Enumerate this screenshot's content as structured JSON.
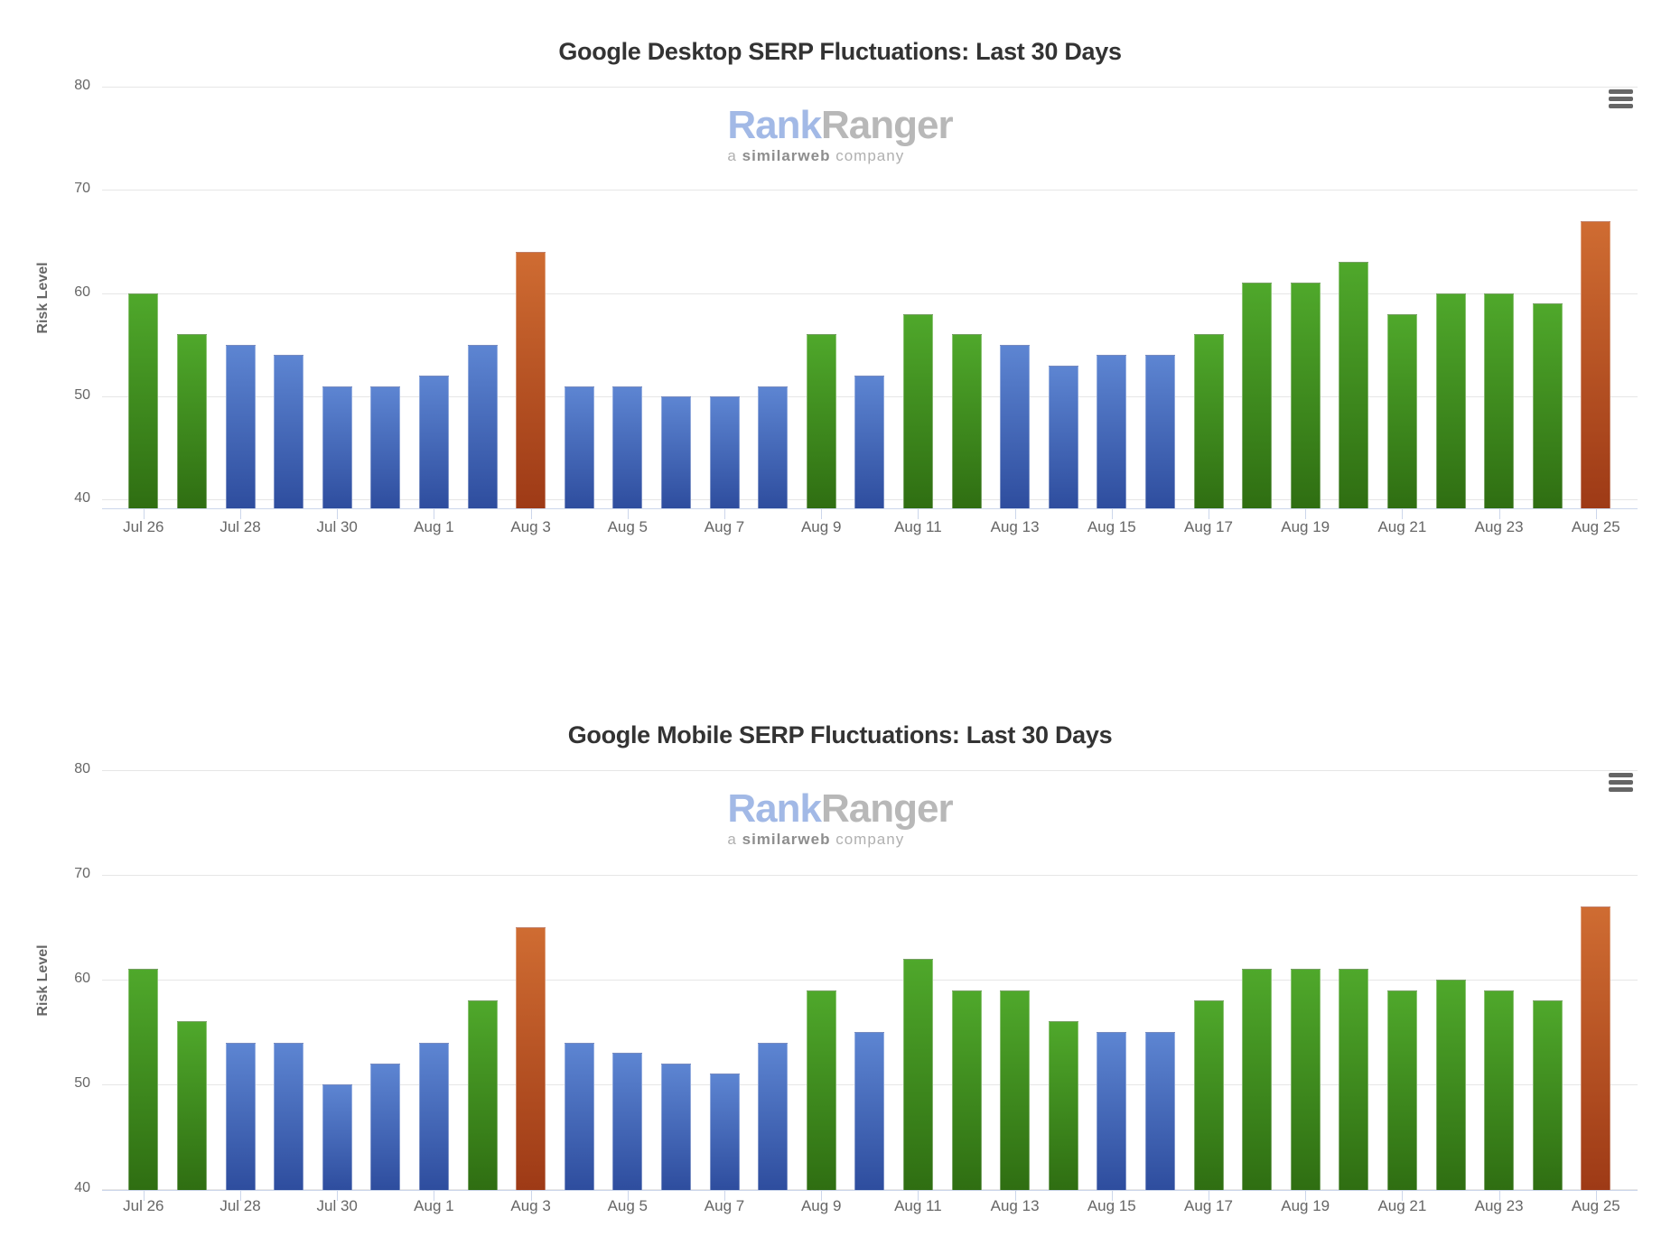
{
  "page": {
    "background": "#ffffff"
  },
  "logo": {
    "brand_first": "Rank",
    "brand_second": "Ranger",
    "tagline_a": "a",
    "tagline_b": "similarweb",
    "tagline_c": "company"
  },
  "palette": {
    "green_top": "#4fa82b",
    "green_bottom": "#2f6e12",
    "blue_top": "#5d85d2",
    "blue_bottom": "#2e4d9e",
    "orange_top": "#cf6c32",
    "orange_bottom": "#9e3a16",
    "gridline": "#e6e6e6",
    "axis_line": "#ccd6eb",
    "label_color": "#666666",
    "title_color": "#333333",
    "logo_blue": "#a2b9e6",
    "logo_gray": "#b8b8b8",
    "menu_icon_color": "#666666"
  },
  "chart_data": [
    {
      "type": "bar",
      "title": "Google Desktop SERP Fluctuations: Last 30 Days",
      "xlabel": "",
      "ylabel": "Risk Level",
      "ylim": [
        40,
        80
      ],
      "grid": "horizontal",
      "legend_position": "none",
      "y_ticks": [
        80,
        70,
        60,
        50,
        40
      ],
      "x_tick_labels": [
        "Jul 26",
        "Jul 28",
        "Jul 30",
        "Aug 1",
        "Aug 3",
        "Aug 5",
        "Aug 7",
        "Aug 9",
        "Aug 11",
        "Aug 13",
        "Aug 15",
        "Aug 17",
        "Aug 19",
        "Aug 21",
        "Aug 23",
        "Aug 25"
      ],
      "categories": [
        "Jul 26",
        "Jul 27",
        "Jul 28",
        "Jul 29",
        "Jul 30",
        "Jul 31",
        "Aug 1",
        "Aug 2",
        "Aug 3",
        "Aug 4",
        "Aug 5",
        "Aug 6",
        "Aug 7",
        "Aug 8",
        "Aug 9",
        "Aug 10",
        "Aug 11",
        "Aug 12",
        "Aug 13",
        "Aug 14",
        "Aug 15",
        "Aug 16",
        "Aug 17",
        "Aug 18",
        "Aug 19",
        "Aug 20",
        "Aug 21",
        "Aug 22",
        "Aug 23",
        "Aug 24",
        "Aug 25"
      ],
      "values": [
        60,
        56,
        55,
        54,
        51,
        51,
        52,
        55,
        64,
        51,
        51,
        50,
        50,
        51,
        56,
        52,
        58,
        56,
        55,
        53,
        54,
        54,
        56,
        61,
        61,
        63,
        58,
        60,
        60,
        59,
        67
      ],
      "bar_colors": [
        "green",
        "green",
        "blue",
        "blue",
        "blue",
        "blue",
        "blue",
        "blue",
        "orange",
        "blue",
        "blue",
        "blue",
        "blue",
        "blue",
        "green",
        "blue",
        "green",
        "green",
        "blue",
        "blue",
        "blue",
        "blue",
        "green",
        "green",
        "green",
        "green",
        "green",
        "green",
        "green",
        "green",
        "orange"
      ]
    },
    {
      "type": "bar",
      "title": "Google Mobile SERP Fluctuations: Last 30 Days",
      "xlabel": "",
      "ylabel": "Risk Level",
      "ylim": [
        40,
        80
      ],
      "grid": "horizontal",
      "legend_position": "none",
      "y_ticks": [
        80,
        70,
        60,
        50,
        40
      ],
      "x_tick_labels": [
        "Jul 26",
        "Jul 28",
        "Jul 30",
        "Aug 1",
        "Aug 3",
        "Aug 5",
        "Aug 7",
        "Aug 9",
        "Aug 11",
        "Aug 13",
        "Aug 15",
        "Aug 17",
        "Aug 19",
        "Aug 21",
        "Aug 23",
        "Aug 25"
      ],
      "categories": [
        "Jul 26",
        "Jul 27",
        "Jul 28",
        "Jul 29",
        "Jul 30",
        "Jul 31",
        "Aug 1",
        "Aug 2",
        "Aug 3",
        "Aug 4",
        "Aug 5",
        "Aug 6",
        "Aug 7",
        "Aug 8",
        "Aug 9",
        "Aug 10",
        "Aug 11",
        "Aug 12",
        "Aug 13",
        "Aug 14",
        "Aug 15",
        "Aug 16",
        "Aug 17",
        "Aug 18",
        "Aug 19",
        "Aug 20",
        "Aug 21",
        "Aug 22",
        "Aug 23",
        "Aug 24",
        "Aug 25"
      ],
      "values": [
        61,
        56,
        54,
        54,
        50,
        52,
        54,
        58,
        65,
        54,
        53,
        52,
        51,
        54,
        59,
        55,
        62,
        59,
        59,
        56,
        55,
        55,
        58,
        61,
        61,
        61,
        59,
        60,
        59,
        58,
        67
      ],
      "bar_colors": [
        "green",
        "green",
        "blue",
        "blue",
        "blue",
        "blue",
        "blue",
        "green",
        "orange",
        "blue",
        "blue",
        "blue",
        "blue",
        "blue",
        "green",
        "blue",
        "green",
        "green",
        "green",
        "green",
        "blue",
        "blue",
        "green",
        "green",
        "green",
        "green",
        "green",
        "green",
        "green",
        "green",
        "orange"
      ]
    }
  ]
}
